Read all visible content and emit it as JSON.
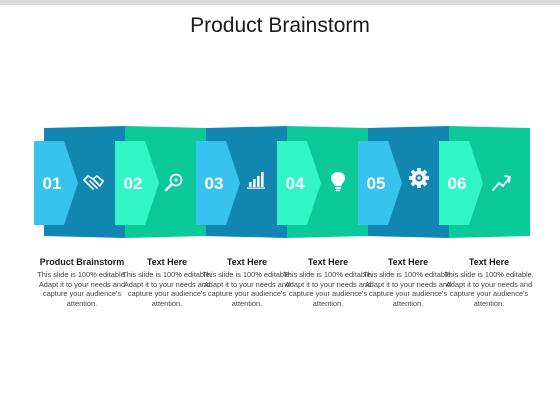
{
  "slide": {
    "title": "Product Brainstorm"
  },
  "colors": {
    "blue_dark": "#1186b0",
    "blue_light": "#38c2ee",
    "green_dark": "#0cc99a",
    "green_light": "#31f5c5"
  },
  "steps": [
    {
      "number": "01",
      "icon": "handshake-icon",
      "heading": "Product Brainstorm",
      "body": "This slide is 100% editable. Adapt it to your needs and capture your audience's attention."
    },
    {
      "number": "02",
      "icon": "search-icon",
      "heading": "Text Here",
      "body": "This slide is 100% editable. Adapt it to your needs and capture your audience's attention."
    },
    {
      "number": "03",
      "icon": "bar-chart-icon",
      "heading": "Text Here",
      "body": "This slide is 100% editable. Adapt it to your needs and capture your audience's attention."
    },
    {
      "number": "04",
      "icon": "lightbulb-icon",
      "heading": "Text Here",
      "body": "This slide is 100% editable. Adapt it to your needs and capture your audience's attention."
    },
    {
      "number": "05",
      "icon": "gear-icon",
      "heading": "Text Here",
      "body": "This slide is 100% editable. Adapt it to your needs and capture your audience's attention."
    },
    {
      "number": "06",
      "icon": "growth-arrow-icon",
      "heading": "Text Here",
      "body": "This slide is 100% editable. Adapt it to your needs and capture your audience's attention."
    }
  ]
}
